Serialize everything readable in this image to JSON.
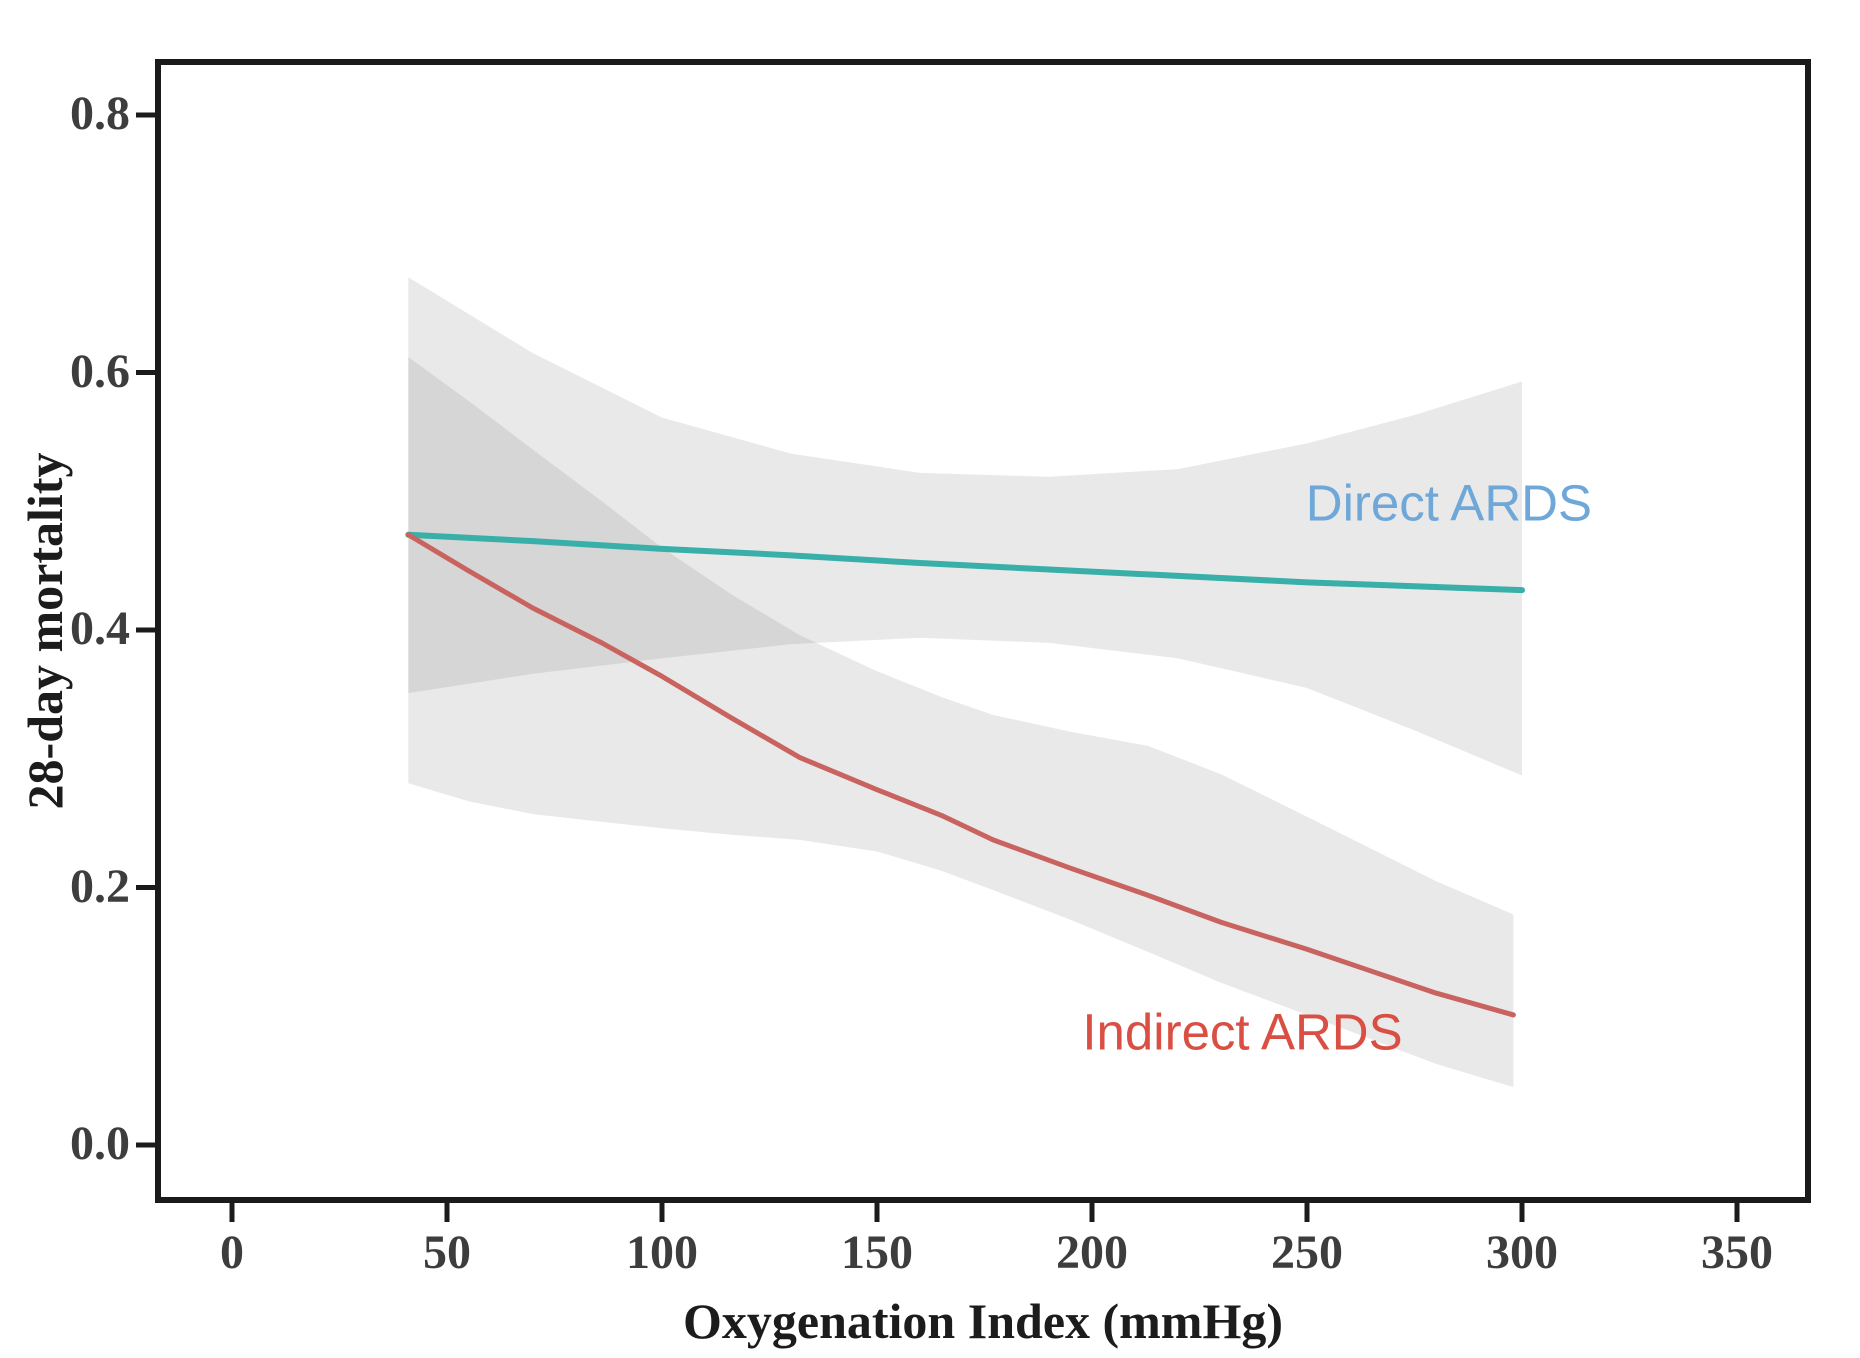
{
  "chart_data": {
    "type": "line",
    "title": "",
    "xlabel": "Oxygenation Index (mmHg)",
    "ylabel": "28-day mortality",
    "xlim": [
      -17,
      367
    ],
    "ylim": [
      -0.043,
      0.841
    ],
    "grid": false,
    "legend_position": "annotated-on-plot",
    "frame_color": "#1b1b1b",
    "band_color": "rgba(120,120,120,0.16)",
    "tick_label_color": "#3d3d3d",
    "x_ticks": [
      {
        "value": 0,
        "label": "0"
      },
      {
        "value": 50,
        "label": "50"
      },
      {
        "value": 100,
        "label": "100"
      },
      {
        "value": 150,
        "label": "150"
      },
      {
        "value": 200,
        "label": "200"
      },
      {
        "value": 250,
        "label": "250"
      },
      {
        "value": 300,
        "label": "300"
      },
      {
        "value": 350,
        "label": "350"
      }
    ],
    "y_ticks": [
      {
        "value": 0.0,
        "label": "0.0"
      },
      {
        "value": 0.2,
        "label": "0.2"
      },
      {
        "value": 0.4,
        "label": "0.4"
      },
      {
        "value": 0.6,
        "label": "0.6"
      },
      {
        "value": 0.8,
        "label": "0.8"
      }
    ],
    "series": [
      {
        "name": "Direct ARDS",
        "line_color": "#38AFA8",
        "line_width": 6,
        "x": [
          41,
          70,
          100,
          130,
          160,
          190,
          220,
          250,
          275,
          300
        ],
        "y": [
          0.474,
          0.469,
          0.463,
          0.458,
          0.452,
          0.447,
          0.442,
          0.437,
          0.434,
          0.431
        ],
        "band": {
          "upper": [
            0.674,
            0.615,
            0.565,
            0.537,
            0.522,
            0.519,
            0.525,
            0.545,
            0.567,
            0.593
          ],
          "lower": [
            0.351,
            0.366,
            0.378,
            0.389,
            0.394,
            0.39,
            0.378,
            0.355,
            0.322,
            0.287
          ]
        }
      },
      {
        "name": "Indirect ARDS",
        "line_color": "#C96360",
        "line_width": 5,
        "x": [
          41,
          55,
          70,
          86,
          100,
          116,
          132,
          150,
          165,
          177,
          195,
          213,
          230,
          250,
          265,
          280,
          298
        ],
        "y": [
          0.474,
          0.446,
          0.417,
          0.39,
          0.364,
          0.332,
          0.301,
          0.276,
          0.256,
          0.237,
          0.215,
          0.194,
          0.173,
          0.152,
          0.135,
          0.118,
          0.101
        ],
        "band": {
          "upper": [
            0.612,
            0.578,
            0.54,
            0.5,
            0.464,
            0.428,
            0.396,
            0.368,
            0.348,
            0.334,
            0.321,
            0.31,
            0.288,
            0.255,
            0.23,
            0.205,
            0.179
          ],
          "lower": [
            0.281,
            0.267,
            0.257,
            0.251,
            0.246,
            0.241,
            0.237,
            0.228,
            0.213,
            0.198,
            0.175,
            0.15,
            0.126,
            0.101,
            0.082,
            0.063,
            0.045
          ]
        }
      }
    ],
    "annotations": [
      {
        "label": "Direct ARDS",
        "x": 283,
        "y": 0.499,
        "color": "#6FA8D8"
      },
      {
        "label": "Indirect ARDS",
        "x": 235,
        "y": 0.088,
        "color": "#D94F43"
      }
    ]
  }
}
